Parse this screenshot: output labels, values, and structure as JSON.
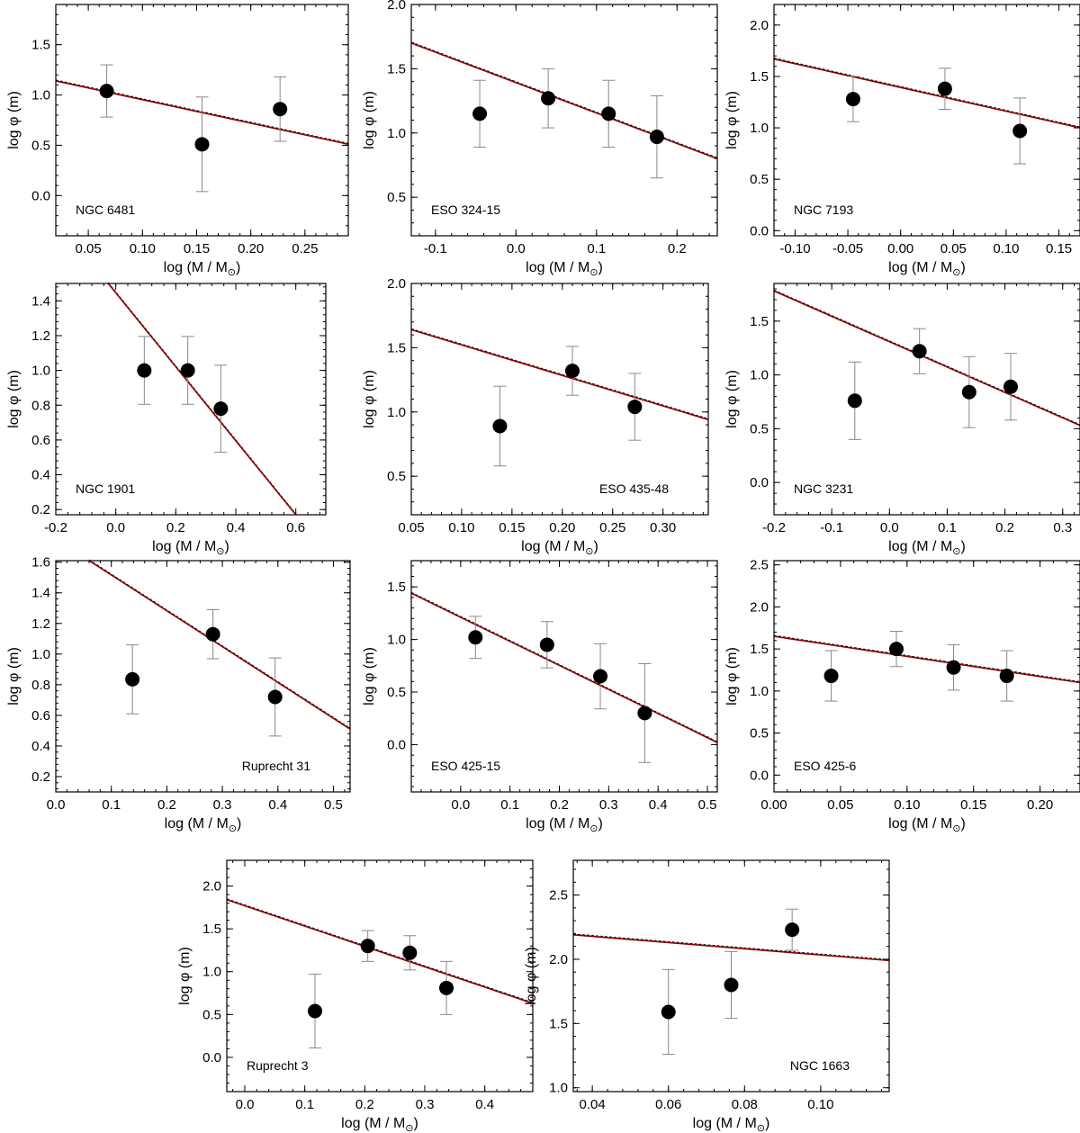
{
  "chart_data": [
    {
      "type": "scatter",
      "label": "NGC 6481",
      "xlabel": "log (M / M",
      "xlabel_sub": "⊙",
      "xlabel_close": ")",
      "ylabel": "log φ (m)",
      "xlim": [
        0.02,
        0.29
      ],
      "ylim": [
        -0.4,
        1.9
      ],
      "xticks": [
        0.05,
        0.1,
        0.15,
        0.2,
        0.25
      ],
      "xticklabels": [
        "0.05",
        "0.10",
        "0.15",
        "0.20",
        "0.25"
      ],
      "yticks": [
        0.0,
        0.5,
        1.0,
        1.5
      ],
      "yticklabels": [
        "0.0",
        "0.5",
        "1.0",
        "1.5"
      ],
      "points": [
        {
          "x": 0.067,
          "y": 1.04,
          "err": 0.26
        },
        {
          "x": 0.155,
          "y": 0.51,
          "err": 0.47
        },
        {
          "x": 0.227,
          "y": 0.86,
          "err": 0.32
        }
      ],
      "fit": {
        "x": [
          0.02,
          0.29
        ],
        "y": [
          1.14,
          0.51
        ]
      }
    },
    {
      "type": "scatter",
      "label": "ESO 324-15",
      "xlabel": "log (M / M",
      "xlabel_sub": "⊙",
      "xlabel_close": ")",
      "ylabel": "log φ (m)",
      "xlim": [
        -0.13,
        0.25
      ],
      "ylim": [
        0.2,
        2.0
      ],
      "xticks": [
        -0.1,
        0.0,
        0.1,
        0.2
      ],
      "xticklabels": [
        "-0.1",
        "0.0",
        "0.1",
        "0.2"
      ],
      "yticks": [
        0.5,
        1.0,
        1.5,
        2.0
      ],
      "yticklabels": [
        "0.5",
        "1.0",
        "1.5",
        "2.0"
      ],
      "points": [
        {
          "x": -0.045,
          "y": 1.15,
          "err": 0.26
        },
        {
          "x": 0.04,
          "y": 1.27,
          "err": 0.23
        },
        {
          "x": 0.115,
          "y": 1.15,
          "err": 0.26
        },
        {
          "x": 0.175,
          "y": 0.97,
          "err": 0.32
        }
      ],
      "fit": {
        "x": [
          -0.13,
          0.25
        ],
        "y": [
          1.7,
          0.8
        ]
      }
    },
    {
      "type": "scatter",
      "label": "NGC 7193",
      "xlabel": "log (M / M",
      "xlabel_sub": "⊙",
      "xlabel_close": ")",
      "ylabel": "log φ (m)",
      "xlim": [
        -0.12,
        0.17
      ],
      "ylim": [
        -0.05,
        2.2
      ],
      "xticks": [
        -0.1,
        -0.05,
        0.0,
        0.05,
        0.1,
        0.15
      ],
      "xticklabels": [
        "-0.10",
        "-0.05",
        "0.00",
        "0.05",
        "0.10",
        "0.15"
      ],
      "yticks": [
        0.0,
        0.5,
        1.0,
        1.5,
        2.0
      ],
      "yticklabels": [
        "0.0",
        "0.5",
        "1.0",
        "1.5",
        "2.0"
      ],
      "points": [
        {
          "x": -0.045,
          "y": 1.28,
          "err": 0.22
        },
        {
          "x": 0.042,
          "y": 1.38,
          "err": 0.2
        },
        {
          "x": 0.113,
          "y": 0.97,
          "err": 0.32
        }
      ],
      "fit": {
        "x": [
          -0.12,
          0.17
        ],
        "y": [
          1.67,
          1.0
        ]
      }
    },
    {
      "type": "scatter",
      "label": "NGC 1901",
      "xlabel": "log (M / M",
      "xlabel_sub": "⊙",
      "xlabel_close": ")",
      "ylabel": "log φ (m)",
      "xlim": [
        -0.2,
        0.7
      ],
      "ylim": [
        0.17,
        1.5
      ],
      "xticks": [
        -0.2,
        0.0,
        0.2,
        0.4,
        0.6
      ],
      "xticklabels": [
        "-0.2",
        "0.0",
        "0.2",
        "0.4",
        "0.6"
      ],
      "yticks": [
        0.2,
        0.4,
        0.6,
        0.8,
        1.0,
        1.2,
        1.4
      ],
      "yticklabels": [
        "0.2",
        "0.4",
        "0.6",
        "0.8",
        "1.0",
        "1.2",
        "1.4"
      ],
      "points": [
        {
          "x": 0.095,
          "y": 1.0,
          "err": 0.195
        },
        {
          "x": 0.24,
          "y": 1.0,
          "err": 0.195
        },
        {
          "x": 0.35,
          "y": 0.78,
          "err": 0.25
        }
      ],
      "fit": {
        "x": [
          -0.03,
          0.6
        ],
        "y": [
          1.51,
          0.17
        ]
      }
    },
    {
      "type": "scatter",
      "label": "ESO 435-48",
      "xlabel": "log (M / M",
      "xlabel_sub": "⊙",
      "xlabel_close": ")",
      "ylabel": "log φ (m)",
      "xlim": [
        0.05,
        0.345
      ],
      "ylim": [
        0.2,
        2.0
      ],
      "xticks": [
        0.05,
        0.1,
        0.15,
        0.2,
        0.25,
        0.3
      ],
      "xticklabels": [
        "0.05",
        "0.10",
        "0.15",
        "0.20",
        "0.25",
        "0.30"
      ],
      "yticks": [
        0.5,
        1.0,
        1.5,
        2.0
      ],
      "yticklabels": [
        "0.5",
        "1.0",
        "1.5",
        "2.0"
      ],
      "points": [
        {
          "x": 0.138,
          "y": 0.89,
          "err": 0.31
        },
        {
          "x": 0.21,
          "y": 1.32,
          "err": 0.19
        },
        {
          "x": 0.272,
          "y": 1.04,
          "err": 0.26
        }
      ],
      "fit": {
        "x": [
          0.05,
          0.345
        ],
        "y": [
          1.64,
          0.94
        ]
      }
    },
    {
      "type": "scatter",
      "label": "NGC 3231",
      "xlabel": "log (M / M",
      "xlabel_sub": "⊙",
      "xlabel_close": ")",
      "ylabel": "log φ (m)",
      "xlim": [
        -0.2,
        0.33
      ],
      "ylim": [
        -0.3,
        1.85
      ],
      "xticks": [
        -0.2,
        -0.1,
        0.0,
        0.1,
        0.2,
        0.3
      ],
      "xticklabels": [
        "-0.2",
        "-0.1",
        "0.0",
        "0.1",
        "0.2",
        "0.3"
      ],
      "yticks": [
        0.0,
        0.5,
        1.0,
        1.5
      ],
      "yticklabels": [
        "0.0",
        "0.5",
        "1.0",
        "1.5"
      ],
      "points": [
        {
          "x": -0.06,
          "y": 0.76,
          "err": 0.36
        },
        {
          "x": 0.052,
          "y": 1.22,
          "err": 0.21
        },
        {
          "x": 0.138,
          "y": 0.84,
          "err": 0.33
        },
        {
          "x": 0.21,
          "y": 0.89,
          "err": 0.31
        }
      ],
      "fit": {
        "x": [
          -0.2,
          0.33
        ],
        "y": [
          1.78,
          0.53
        ]
      }
    },
    {
      "type": "scatter",
      "label": "Ruprecht 31",
      "xlabel": "log (M / M",
      "xlabel_sub": "⊙",
      "xlabel_close": ")",
      "ylabel": "log φ (m)",
      "xlim": [
        0.0,
        0.53
      ],
      "ylim": [
        0.1,
        1.61
      ],
      "xticks": [
        0.0,
        0.1,
        0.2,
        0.3,
        0.4,
        0.5
      ],
      "xticklabels": [
        "0.0",
        "0.1",
        "0.2",
        "0.3",
        "0.4",
        "0.5"
      ],
      "yticks": [
        0.2,
        0.4,
        0.6,
        0.8,
        1.0,
        1.2,
        1.4,
        1.6
      ],
      "yticklabels": [
        "0.2",
        "0.4",
        "0.6",
        "0.8",
        "1.0",
        "1.2",
        "1.4",
        "1.6"
      ],
      "points": [
        {
          "x": 0.138,
          "y": 0.835,
          "err": 0.225
        },
        {
          "x": 0.283,
          "y": 1.13,
          "err": 0.16
        },
        {
          "x": 0.395,
          "y": 0.72,
          "err": 0.255
        }
      ],
      "fit": {
        "x": [
          0.06,
          0.53
        ],
        "y": [
          1.61,
          0.51
        ]
      }
    },
    {
      "type": "scatter",
      "label": "ESO 425-15",
      "xlabel": "log (M / M",
      "xlabel_sub": "⊙",
      "xlabel_close": ")",
      "ylabel": "log φ (m)",
      "xlim": [
        -0.1,
        0.52
      ],
      "ylim": [
        -0.45,
        1.75
      ],
      "xticks": [
        0.0,
        0.1,
        0.2,
        0.3,
        0.4,
        0.5
      ],
      "xticklabels": [
        "0.0",
        "0.1",
        "0.2",
        "0.3",
        "0.4",
        "0.5"
      ],
      "yticks": [
        0.0,
        0.5,
        1.0,
        1.5
      ],
      "yticklabels": [
        "0.0",
        "0.5",
        "1.0",
        "1.5"
      ],
      "points": [
        {
          "x": 0.03,
          "y": 1.02,
          "err": 0.2
        },
        {
          "x": 0.175,
          "y": 0.95,
          "err": 0.22
        },
        {
          "x": 0.283,
          "y": 0.65,
          "err": 0.31
        },
        {
          "x": 0.373,
          "y": 0.3,
          "err": 0.47
        }
      ],
      "fit": {
        "x": [
          -0.1,
          0.52
        ],
        "y": [
          1.44,
          0.02
        ]
      }
    },
    {
      "type": "scatter",
      "label": "ESO 425-6",
      "xlabel": "log (M / M",
      "xlabel_sub": "⊙",
      "xlabel_close": ")",
      "ylabel": "log φ (m)",
      "xlim": [
        0.0,
        0.23
      ],
      "ylim": [
        -0.2,
        2.55
      ],
      "xticks": [
        0.0,
        0.05,
        0.1,
        0.15,
        0.2
      ],
      "xticklabels": [
        "0.00",
        "0.05",
        "0.10",
        "0.15",
        "0.20"
      ],
      "yticks": [
        0.0,
        0.5,
        1.0,
        1.5,
        2.0,
        2.5
      ],
      "yticklabels": [
        "0.0",
        "0.5",
        "1.0",
        "1.5",
        "2.0",
        "2.5"
      ],
      "points": [
        {
          "x": 0.043,
          "y": 1.18,
          "err": 0.3
        },
        {
          "x": 0.092,
          "y": 1.5,
          "err": 0.21
        },
        {
          "x": 0.135,
          "y": 1.28,
          "err": 0.27
        },
        {
          "x": 0.175,
          "y": 1.18,
          "err": 0.3
        }
      ],
      "fit": {
        "x": [
          0.0,
          0.23
        ],
        "y": [
          1.65,
          1.1
        ]
      }
    },
    {
      "type": "scatter",
      "label": "Ruprecht 3",
      "xlabel": "log (M / M",
      "xlabel_sub": "⊙",
      "xlabel_close": ")",
      "ylabel": "log φ (m)",
      "xlim": [
        -0.03,
        0.48
      ],
      "ylim": [
        -0.4,
        2.3
      ],
      "xticks": [
        0.0,
        0.1,
        0.2,
        0.3,
        0.4
      ],
      "xticklabels": [
        "0.0",
        "0.1",
        "0.2",
        "0.3",
        "0.4"
      ],
      "yticks": [
        0.0,
        0.5,
        1.0,
        1.5,
        2.0
      ],
      "yticklabels": [
        "0.0",
        "0.5",
        "1.0",
        "1.5",
        "2.0"
      ],
      "points": [
        {
          "x": 0.117,
          "y": 0.54,
          "err": 0.43
        },
        {
          "x": 0.205,
          "y": 1.3,
          "err": 0.18
        },
        {
          "x": 0.275,
          "y": 1.22,
          "err": 0.2
        },
        {
          "x": 0.336,
          "y": 0.81,
          "err": 0.31
        }
      ],
      "fit": {
        "x": [
          -0.03,
          0.48
        ],
        "y": [
          1.84,
          0.63
        ]
      }
    },
    {
      "type": "scatter",
      "label": "NGC 1663",
      "xlabel": "log (M / M",
      "xlabel_sub": "⊙",
      "xlabel_close": ")",
      "ylabel": "log φ (m)",
      "xlim": [
        0.035,
        0.118
      ],
      "ylim": [
        0.97,
        2.77
      ],
      "xticks": [
        0.04,
        0.06,
        0.08,
        0.1
      ],
      "xticklabels": [
        "0.04",
        "0.06",
        "0.08",
        "0.10"
      ],
      "yticks": [
        1.0,
        1.5,
        2.0,
        2.5
      ],
      "yticklabels": [
        "1.0",
        "1.5",
        "2.0",
        "2.5"
      ],
      "points": [
        {
          "x": 0.06,
          "y": 1.59,
          "err": 0.33
        },
        {
          "x": 0.0765,
          "y": 1.8,
          "err": 0.26
        },
        {
          "x": 0.0925,
          "y": 2.23,
          "err": 0.16
        }
      ],
      "fit": {
        "x": [
          0.035,
          0.118
        ],
        "y": [
          2.19,
          1.99
        ]
      }
    }
  ],
  "colors": {
    "fit_line": "#8b0000",
    "fit_dashed": "#000000",
    "points": "#000000",
    "errorbars": "#888888",
    "frame": "#000000"
  }
}
